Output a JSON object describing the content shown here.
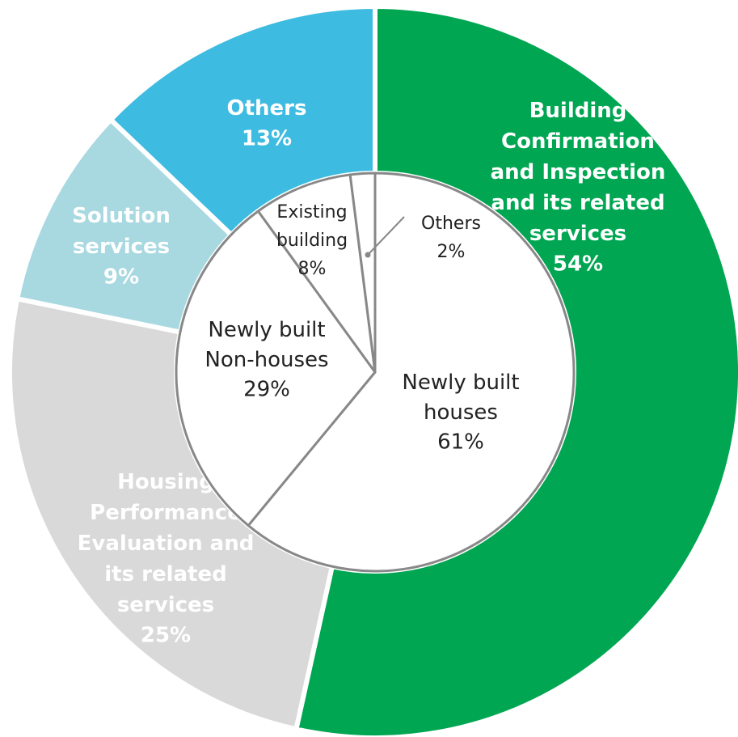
{
  "chart_data": [
    {
      "type": "donut",
      "categories": [
        "Building\nConfirmation\nand Inspection\nand its related\nservices",
        "Housing\nPerformance\nEvaluation and\nits related\nservices",
        "Solution\nservices",
        "Others"
      ],
      "values": [
        54,
        25,
        9,
        13
      ],
      "value_labels": [
        "54%",
        "25%",
        "9%",
        "13%"
      ],
      "colors": [
        "#00a651",
        "#d9d9d9",
        "#a8d8e0",
        "#3dbbe0"
      ]
    },
    {
      "type": "pie",
      "categories": [
        "Newly built\nhouses",
        "Newly built\nNon-houses",
        "Existing\nbuilding",
        "Others"
      ],
      "values": [
        61,
        29,
        8,
        2
      ],
      "value_labels": [
        "61%",
        "29%",
        "8%",
        "2%"
      ],
      "colors": [
        "#ffffff",
        "#ffffff",
        "#ffffff",
        "#ffffff"
      ]
    }
  ]
}
